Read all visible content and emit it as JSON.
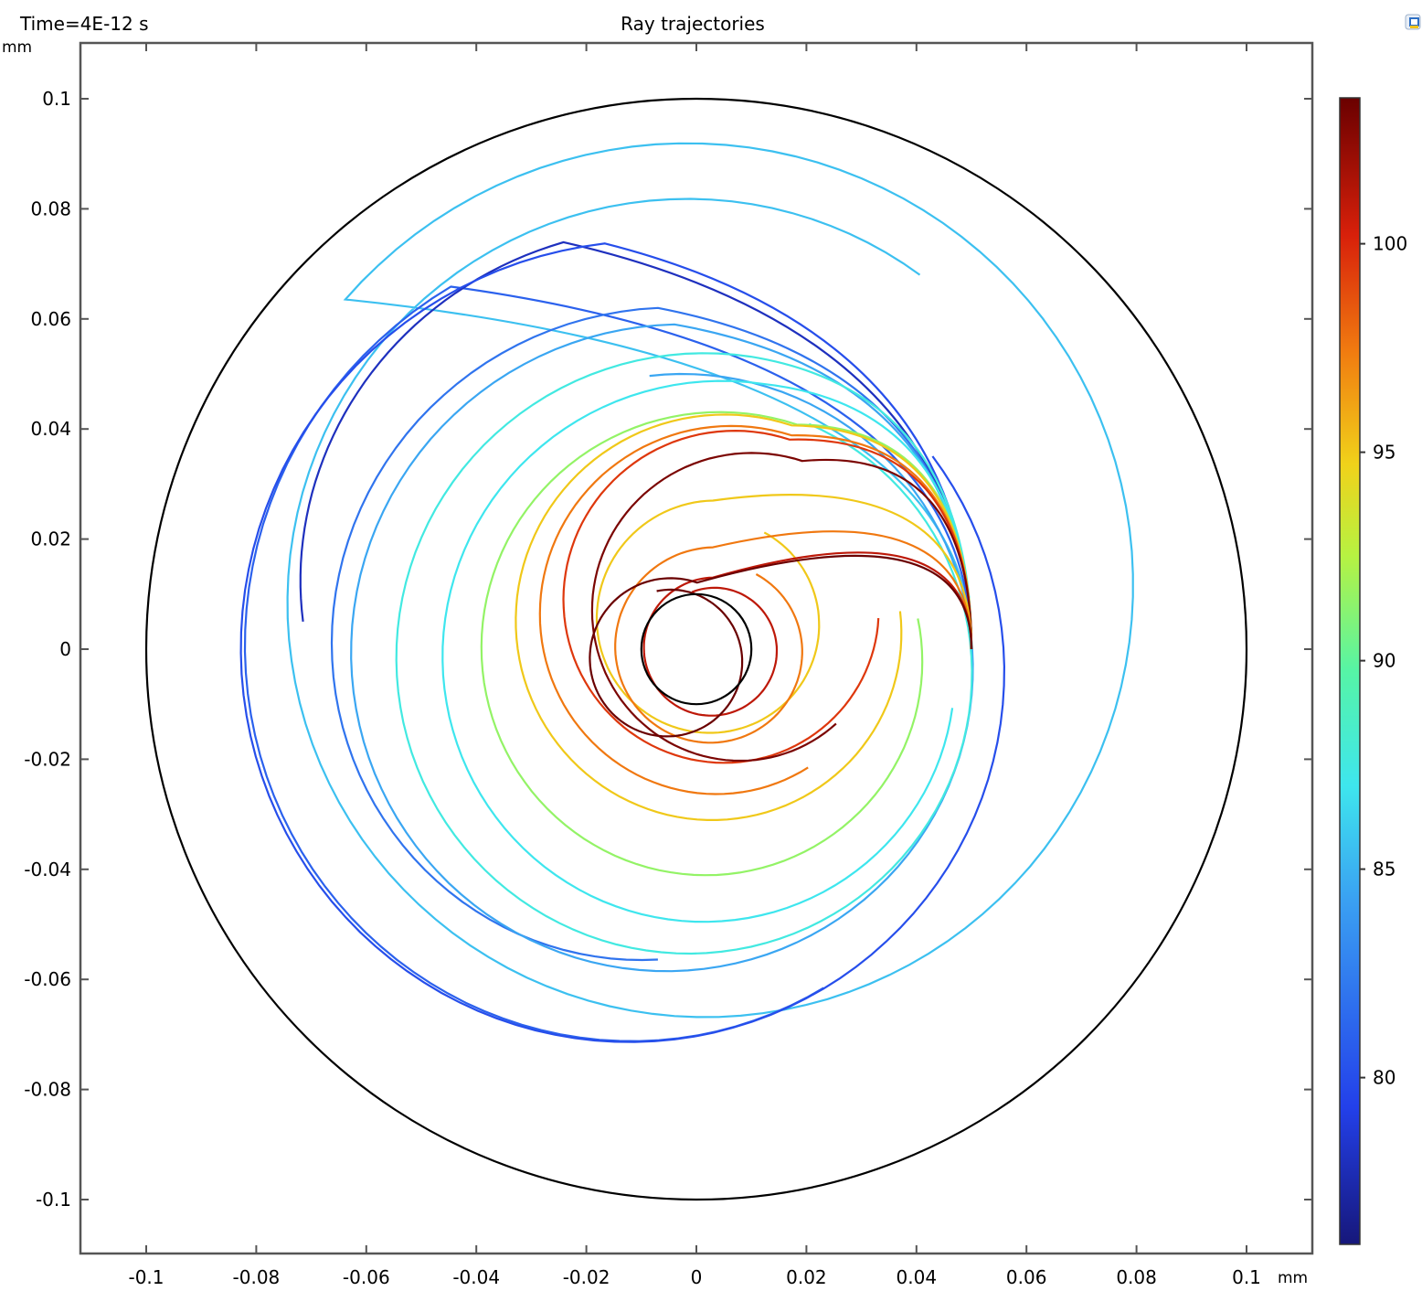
{
  "header": {
    "time_label": "Time=4E-12 s",
    "title": "Ray trajectories"
  },
  "chart_data": {
    "type": "line",
    "title": "Ray trajectories",
    "xlabel": "mm",
    "ylabel": "mm",
    "xlim": [
      -0.1125,
      0.112
    ],
    "ylim": [
      -0.11,
      0.11
    ],
    "x_ticks": [
      -0.1,
      -0.08,
      -0.06,
      -0.04,
      -0.02,
      0,
      0.02,
      0.04,
      0.06,
      0.08,
      0.1
    ],
    "x_tick_labels": [
      "-0.1",
      "-0.08",
      "-0.06",
      "-0.04",
      "-0.02",
      "0",
      "0.02",
      "0.04",
      "0.06",
      "0.08",
      "0.1"
    ],
    "y_ticks": [
      0.1,
      0.08,
      0.06,
      0.04,
      0.02,
      0,
      -0.02,
      -0.04,
      -0.06,
      -0.08,
      -0.1
    ],
    "y_tick_labels": [
      "0.1",
      "0.08",
      "0.06",
      "0.04",
      "0.02",
      "0",
      "-0.02",
      "-0.04",
      "-0.06",
      "-0.08",
      "-0.1"
    ],
    "grid": false,
    "boundaries": [
      {
        "shape": "circle",
        "center": [
          0,
          0
        ],
        "radius": 0.1,
        "color": "#000000"
      },
      {
        "shape": "circle",
        "center": [
          0,
          0
        ],
        "radius": 0.01,
        "color": "#000000"
      }
    ],
    "source_point": [
      0.05,
      0
    ],
    "colorbar": {
      "min": 76.0,
      "max": 103.5,
      "ticks": [
        80,
        85,
        90,
        95,
        100
      ],
      "tick_labels": [
        "80",
        "85",
        "90",
        "95",
        "100"
      ],
      "colormap": "jet"
    },
    "series": [
      {
        "value": 85.5,
        "radius": 0.0833,
        "center": [
          0,
          0.01
        ],
        "start_angle": 140,
        "sweep": -445
      },
      {
        "value": 81.0,
        "radius": 0.078,
        "center": [
          -0.008,
          -0.003
        ],
        "start_angle": 118,
        "sweep": 180
      },
      {
        "value": 78.0,
        "radius": 0.07,
        "center": [
          -0.012,
          0.005
        ],
        "start_angle": 100,
        "sweep": 80
      },
      {
        "value": 80.0,
        "radius": 0.076,
        "center": [
          -0.01,
          -0.002
        ],
        "start_angle": 95,
        "sweep": 300
      },
      {
        "value": 82.0,
        "radius": 0.064,
        "center": [
          -0.007,
          -0.002
        ],
        "start_angle": 90,
        "sweep": 180
      },
      {
        "value": 84.5,
        "radius": 0.061,
        "center": [
          -0.004,
          -0.002
        ],
        "start_angle": 90,
        "sweep": 365
      },
      {
        "value": 87.5,
        "radius": 0.057,
        "center": [
          0,
          -0.003
        ],
        "start_angle": 80,
        "sweep": 345
      },
      {
        "value": 87.0,
        "radius": 0.052,
        "center": [
          0.003,
          -0.003
        ],
        "start_angle": 80,
        "sweep": 270
      },
      {
        "value": 91.5,
        "radius": 0.0445,
        "center": [
          0.003,
          -0.001
        ],
        "start_angle": 70,
        "sweep": 300
      },
      {
        "value": 95.0,
        "radius": 0.039,
        "center": [
          0.004,
          0.004
        ],
        "start_angle": 70,
        "sweep": 295
      },
      {
        "value": 97.5,
        "radius": 0.036,
        "center": [
          0.005,
          0.005
        ],
        "start_angle": 70,
        "sweep": 230
      },
      {
        "value": 99.5,
        "radius": 0.032,
        "center": [
          0.006,
          0.008
        ],
        "start_angle": 70,
        "sweep": 285
      },
      {
        "value": 103.0,
        "radius": 0.03,
        "center": [
          0.009,
          0.006
        ],
        "start_angle": 70,
        "sweep": 240
      },
      {
        "value": 95.0,
        "radius": 0.022,
        "center": [
          0.003,
          0.005
        ],
        "start_angle": 90,
        "sweep": 330
      },
      {
        "value": 97.5,
        "radius": 0.0185,
        "center": [
          0.003,
          0.0
        ],
        "start_angle": 90,
        "sweep": 330
      },
      {
        "value": 101.0,
        "radius": 0.013,
        "center": [
          0.003,
          0.0
        ],
        "start_angle": 90,
        "sweep": 380
      },
      {
        "value": 103.5,
        "radius": 0.015,
        "center": [
          -0.005,
          -0.002
        ],
        "start_angle": 70,
        "sweep": 390
      }
    ]
  }
}
